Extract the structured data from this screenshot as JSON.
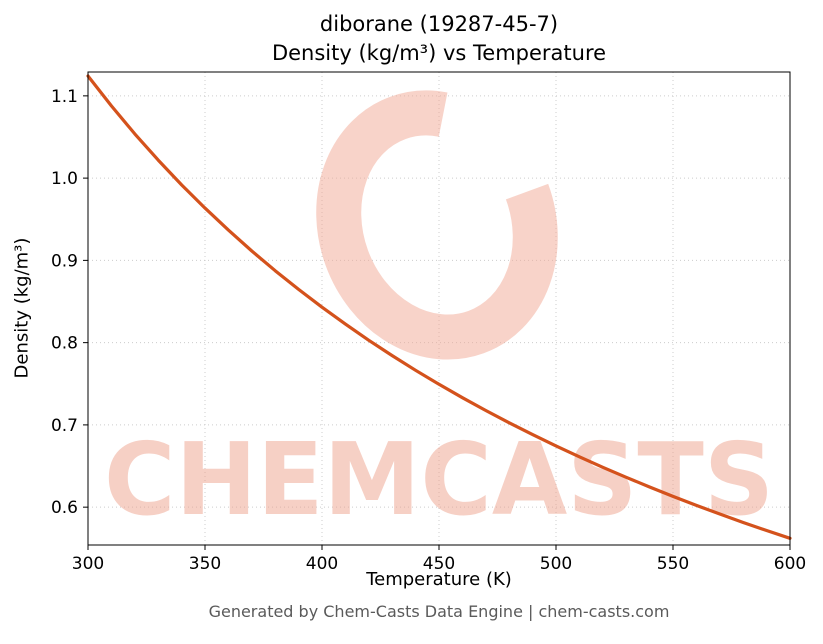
{
  "title": {
    "line1": "diborane (19287-45-7)",
    "line2": "Density (kg/m³) vs Temperature"
  },
  "footer": "Generated by Chem-Casts Data Engine | chem-casts.com",
  "watermark": {
    "text": "CHEMCASTS",
    "color": "#efa28d"
  },
  "chart_data": {
    "type": "line",
    "title": "diborane (19287-45-7) Density (kg/m³) vs Temperature",
    "xlabel": "Temperature (K)",
    "ylabel": "Density (kg/m³)",
    "xlim": [
      300,
      600
    ],
    "ylim": [
      0.554,
      1.129
    ],
    "x_ticks": [
      300,
      350,
      400,
      450,
      500,
      550,
      600
    ],
    "y_ticks": [
      0.6,
      0.7,
      0.8,
      0.9,
      1.0,
      1.1
    ],
    "grid": true,
    "legend": false,
    "line_color": "#d4521c",
    "grid_color": "#cccccc",
    "series": [
      {
        "name": "density",
        "x": [
          300,
          310,
          320,
          330,
          340,
          350,
          360,
          370,
          380,
          390,
          400,
          410,
          420,
          430,
          440,
          450,
          460,
          470,
          480,
          490,
          500,
          510,
          520,
          530,
          540,
          550,
          560,
          570,
          580,
          590,
          600
        ],
        "y": [
          1.1241,
          1.0878,
          1.0538,
          1.0219,
          0.9918,
          0.9635,
          0.9368,
          0.9114,
          0.8874,
          0.8647,
          0.8431,
          0.8225,
          0.8029,
          0.7843,
          0.7664,
          0.7494,
          0.7331,
          0.7175,
          0.7026,
          0.6882,
          0.6745,
          0.6612,
          0.6485,
          0.6363,
          0.6245,
          0.6131,
          0.6022,
          0.5917,
          0.5814,
          0.5716,
          0.5621
        ]
      }
    ]
  }
}
